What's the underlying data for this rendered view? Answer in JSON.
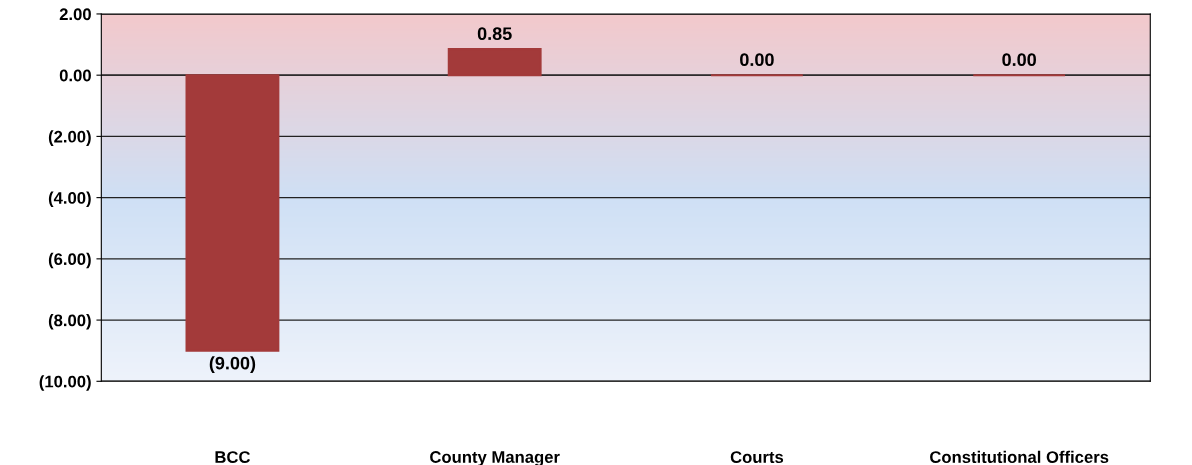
{
  "chart_data": {
    "type": "bar",
    "categories": [
      "BCC",
      "County Manager",
      "Courts",
      "Constitutional Officers"
    ],
    "values": [
      -9.0,
      0.85,
      0.0,
      0.0
    ],
    "value_labels": [
      "(9.00)",
      "0.85",
      "0.00",
      "0.00"
    ],
    "color": "#a33a3a",
    "ylim": [
      -10,
      2
    ],
    "yticks": [
      {
        "value": -10,
        "label": "(10.00)"
      },
      {
        "value": -8,
        "label": "(8.00)"
      },
      {
        "value": -6,
        "label": "(6.00)"
      },
      {
        "value": -4,
        "label": "(4.00)"
      },
      {
        "value": -2,
        "label": "(2.00)"
      },
      {
        "value": 0,
        "label": "0.00"
      },
      {
        "value": 2,
        "label": "2.00"
      }
    ],
    "grid": "y"
  }
}
